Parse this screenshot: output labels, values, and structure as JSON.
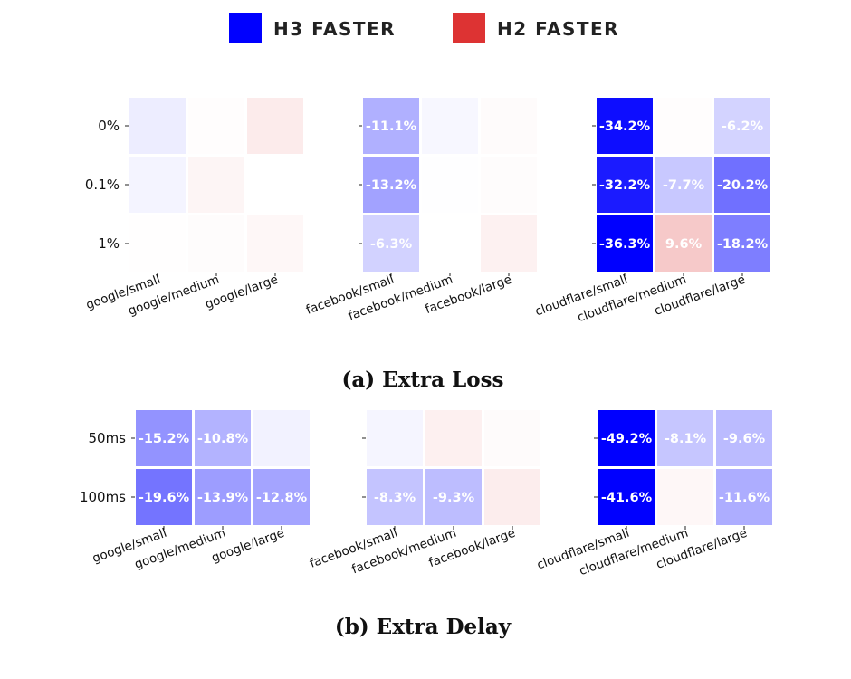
{
  "legend": {
    "h3_label": "H3 FASTER",
    "h2_label": "H2 FASTER",
    "h3_color": "#0000ff",
    "h2_color": "#dd3333"
  },
  "chart_data": [
    {
      "type": "heatmap",
      "caption": "(a) Extra Loss",
      "rows": [
        "0%",
        "0.1%",
        "1%"
      ],
      "panels": [
        {
          "columns": [
            "google/small",
            "google/medium",
            "google/large"
          ],
          "values": [
            [
              -2.5,
              0.4,
              3.5
            ],
            [
              -1.6,
              1.8,
              0.0
            ],
            [
              0.2,
              0.6,
              1.5
            ]
          ],
          "labels": [
            [
              "",
              "",
              ""
            ],
            [
              "",
              "",
              ""
            ],
            [
              "",
              "",
              ""
            ]
          ]
        },
        {
          "columns": [
            "facebook/small",
            "facebook/medium",
            "facebook/large"
          ],
          "values": [
            [
              -11.1,
              -1.2,
              0.7
            ],
            [
              -13.2,
              -0.2,
              0.6
            ],
            [
              -6.3,
              0.0,
              2.4
            ]
          ],
          "labels": [
            [
              "-11.1%",
              "",
              ""
            ],
            [
              "-13.2%",
              "",
              ""
            ],
            [
              "-6.3%",
              "",
              ""
            ]
          ]
        },
        {
          "columns": [
            "cloudflare/small",
            "cloudflare/medium",
            "cloudflare/large"
          ],
          "values": [
            [
              -34.2,
              0.3,
              -6.2
            ],
            [
              -32.2,
              -7.7,
              -20.2
            ],
            [
              -36.3,
              9.6,
              -18.2
            ]
          ],
          "labels": [
            [
              "-34.2%",
              "",
              "-6.2%"
            ],
            [
              "-32.2%",
              "-7.7%",
              "-20.2%"
            ],
            [
              "-36.3%",
              "9.6%",
              "-18.2%"
            ]
          ]
        }
      ]
    },
    {
      "type": "heatmap",
      "caption": "(b) Extra Delay",
      "rows": [
        "50ms",
        "100ms"
      ],
      "panels": [
        {
          "columns": [
            "google/small",
            "google/medium",
            "google/large"
          ],
          "values": [
            [
              -15.2,
              -10.8,
              -1.8
            ],
            [
              -19.6,
              -13.9,
              -12.8
            ]
          ],
          "labels": [
            [
              "-15.2%",
              "-10.8%",
              ""
            ],
            [
              "-19.6%",
              "-13.9%",
              "-12.8%"
            ]
          ]
        },
        {
          "columns": [
            "facebook/small",
            "facebook/medium",
            "facebook/large"
          ],
          "values": [
            [
              -1.4,
              2.6,
              0.7
            ],
            [
              -8.3,
              -9.3,
              3.2
            ]
          ],
          "labels": [
            [
              "",
              "",
              ""
            ],
            [
              "-8.3%",
              "-9.3%",
              ""
            ]
          ]
        },
        {
          "columns": [
            "cloudflare/small",
            "cloudflare/medium",
            "cloudflare/large"
          ],
          "values": [
            [
              -49.2,
              -8.1,
              -9.6
            ],
            [
              -41.6,
              1.4,
              -11.6
            ]
          ],
          "labels": [
            [
              "-49.2%",
              "-8.1%",
              "-9.6%"
            ],
            [
              "-41.6%",
              "",
              "-11.6%"
            ]
          ]
        }
      ]
    }
  ]
}
